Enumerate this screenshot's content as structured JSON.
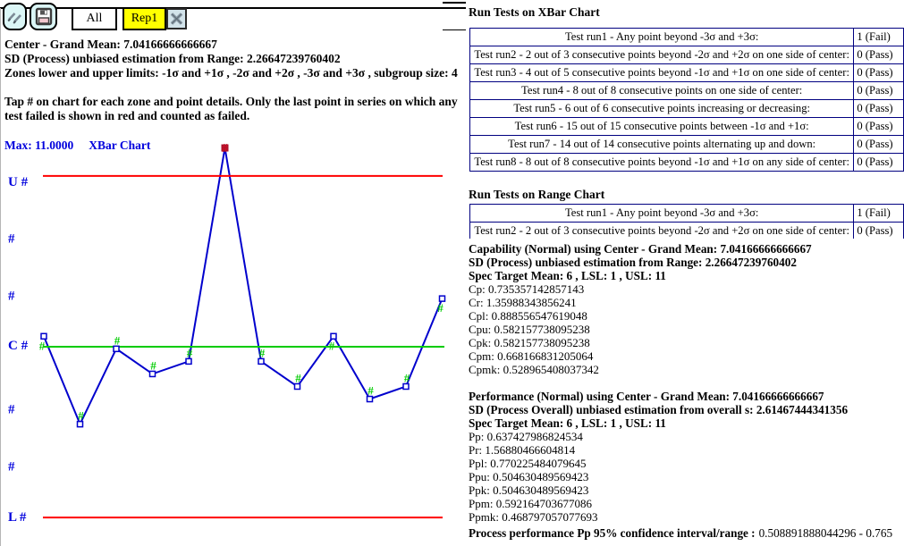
{
  "toolbar": {
    "tabs": {
      "all": "All",
      "rep1": "Rep1"
    }
  },
  "left_pane": {
    "stats_lines": [
      "Center - Grand Mean: 7.04166666666667",
      "SD (Process) unbiased estimation from Range: 2.26647239760402",
      "Zones lower and upper limits: -1σ and +1σ , -2σ and +2σ , -3σ and +3σ , subgroup size: 4"
    ],
    "tap_note": "Tap # on chart for each zone and point details. Only the last point in series on which any test failed is shown in red and counted as failed.",
    "max_label": "Max: 11.0000",
    "chart_title": "XBar Chart"
  },
  "chart_data": {
    "type": "line",
    "title": "XBar Chart",
    "y_max_label": "Max: 11.0000",
    "center_grand_mean": 7.04166666666667,
    "sd_process": 2.26647239760402,
    "subgroup_size": 4,
    "ucl": 10.4413752630727,
    "lcl": 3.64195807026064,
    "zone_labels": [
      "U #",
      "#",
      "#",
      "C #",
      "#",
      "#",
      "L #"
    ],
    "points": [
      {
        "index": 1,
        "value": 7.25,
        "status": "pass",
        "mark": "below"
      },
      {
        "index": 2,
        "value": 5.5,
        "status": "pass",
        "mark": "above"
      },
      {
        "index": 3,
        "value": 7.0,
        "status": "pass",
        "mark": "above"
      },
      {
        "index": 4,
        "value": 6.5,
        "status": "pass",
        "mark": "above"
      },
      {
        "index": 5,
        "value": 6.75,
        "status": "pass",
        "mark": "above"
      },
      {
        "index": 6,
        "value": 11.0,
        "status": "fail",
        "mark": "on"
      },
      {
        "index": 7,
        "value": 6.75,
        "status": "pass",
        "mark": "above"
      },
      {
        "index": 8,
        "value": 6.25,
        "status": "pass",
        "mark": "above"
      },
      {
        "index": 9,
        "value": 7.25,
        "status": "pass",
        "mark": "below"
      },
      {
        "index": 10,
        "value": 6.0,
        "status": "pass",
        "mark": "above"
      },
      {
        "index": 11,
        "value": 6.25,
        "status": "pass",
        "mark": "above"
      },
      {
        "index": 12,
        "value": 8.0,
        "status": "pass",
        "mark": "below"
      }
    ],
    "colors": {
      "line": "#0000cd",
      "center_line": "#00cc00",
      "limit_line": "#ff0000",
      "pass_mark": "#00cc00",
      "fail_mark": "#cc1126",
      "label_text": "#0000dd"
    }
  },
  "right_pane": {
    "xbar_tests": {
      "title": "Run Tests on XBar Chart",
      "rows": [
        {
          "test": "Test run1 - Any point beyond -3σ and +3σ:",
          "result": "1 (Fail)"
        },
        {
          "test": "Test run2 - 2 out of 3 consecutive points beyond -2σ and +2σ on one side of center:",
          "result": "0 (Pass)"
        },
        {
          "test": "Test run3 - 4 out of 5 consecutive points beyond -1σ and +1σ on one side of center:",
          "result": "0 (Pass)"
        },
        {
          "test": "Test run4 - 8 out of 8 consecutive points on one side of center:",
          "result": "0 (Pass)"
        },
        {
          "test": "Test run5 - 6 out of 6 consecutive points increasing or decreasing:",
          "result": "0 (Pass)"
        },
        {
          "test": "Test run6 - 15 out of 15 consecutive points between -1σ and +1σ:",
          "result": "0 (Pass)"
        },
        {
          "test": "Test run7 - 14 out of 14 consecutive points alternating up and down:",
          "result": "0 (Pass)"
        },
        {
          "test": "Test run8 - 8 out of 8 consecutive points beyond -1σ and +1σ on any side of center:",
          "result": "0 (Pass)"
        }
      ]
    },
    "range_tests": {
      "title": "Run Tests on Range Chart",
      "rows": [
        {
          "test": "Test run1 - Any point beyond -3σ and +3σ:",
          "result": "1 (Fail)"
        },
        {
          "test": "Test run2 - 2 out of 3 consecutive points beyond -2σ and +2σ on one side of center:",
          "result": "0 (Pass)"
        }
      ]
    },
    "capability": {
      "header_lines": [
        "Capability (Normal) using Center - Grand Mean: 7.04166666666667",
        "SD (Process) unbiased estimation from Range: 2.26647239760402",
        "Spec Target Mean: 6 , LSL: 1 , USL: 11"
      ],
      "metrics": [
        {
          "label": "Cp",
          "value": "0.735357142857143"
        },
        {
          "label": "Cr",
          "value": "1.35988343856241"
        },
        {
          "label": "Cpl",
          "value": "0.888556547619048"
        },
        {
          "label": "Cpu",
          "value": "0.582157738095238"
        },
        {
          "label": "Cpk",
          "value": "0.582157738095238"
        },
        {
          "label": "Cpm",
          "value": "0.668166831205064"
        },
        {
          "label": "Cpmk",
          "value": "0.528965408037342"
        }
      ]
    },
    "performance": {
      "header_lines": [
        "Performance (Normal) using Center - Grand Mean: 7.04166666666667",
        "SD (Process Overall) unbiased estimation from overall s: 2.61467444341356",
        "Spec Target Mean: 6 , LSL: 1 , USL: 11"
      ],
      "metrics": [
        {
          "label": "Pp",
          "value": "0.637427986824534"
        },
        {
          "label": "Pr",
          "value": "1.56880466604814"
        },
        {
          "label": "Ppl",
          "value": "0.770225484079645"
        },
        {
          "label": "Ppu",
          "value": "0.504630489569423"
        },
        {
          "label": "Ppk",
          "value": "0.504630489569423"
        },
        {
          "label": "Ppm",
          "value": "0.592164703677086"
        },
        {
          "label": "Ppmk",
          "value": "0.468797057077693"
        }
      ]
    },
    "footer": {
      "label": "Process performance Pp 95% confidence interval/range :",
      "value": "0.508891888044296 - 0.765"
    }
  }
}
